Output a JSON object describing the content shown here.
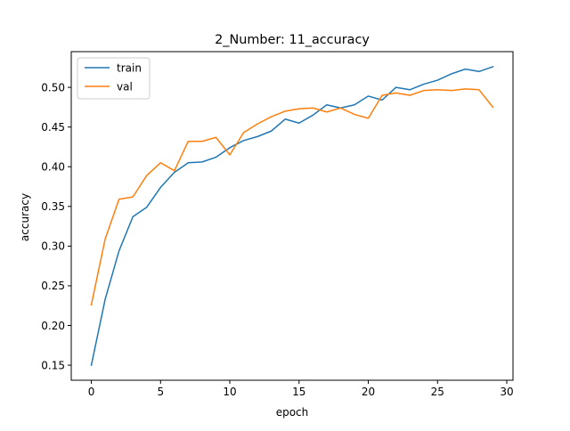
{
  "chart_data": {
    "type": "line",
    "title": "2_Number: 11_accuracy",
    "xlabel": "epoch",
    "ylabel": "accuracy",
    "xlim": [
      -1.45,
      30.45
    ],
    "ylim": [
      0.131,
      0.545
    ],
    "xticks": [
      0,
      5,
      10,
      15,
      20,
      25,
      30
    ],
    "yticks": [
      0.15,
      0.2,
      0.25,
      0.3,
      0.35,
      0.4,
      0.45,
      0.5
    ],
    "grid": false,
    "legend": "top-left",
    "x": [
      0,
      1,
      2,
      3,
      4,
      5,
      6,
      7,
      8,
      9,
      10,
      11,
      12,
      13,
      14,
      15,
      16,
      17,
      18,
      19,
      20,
      21,
      22,
      23,
      24,
      25,
      26,
      27,
      28,
      29
    ],
    "series": [
      {
        "name": "train",
        "color": "#1f77b4",
        "values": [
          0.15,
          0.233,
          0.294,
          0.337,
          0.349,
          0.374,
          0.393,
          0.405,
          0.406,
          0.412,
          0.424,
          0.433,
          0.438,
          0.445,
          0.46,
          0.455,
          0.465,
          0.478,
          0.474,
          0.478,
          0.489,
          0.484,
          0.5,
          0.497,
          0.504,
          0.509,
          0.517,
          0.523,
          0.52,
          0.526
        ]
      },
      {
        "name": "val",
        "color": "#ff7f0e",
        "values": [
          0.226,
          0.309,
          0.359,
          0.362,
          0.389,
          0.405,
          0.395,
          0.432,
          0.432,
          0.437,
          0.415,
          0.443,
          0.454,
          0.463,
          0.47,
          0.473,
          0.474,
          0.469,
          0.474,
          0.466,
          0.461,
          0.49,
          0.493,
          0.49,
          0.496,
          0.497,
          0.496,
          0.498,
          0.497,
          0.475
        ]
      }
    ]
  }
}
